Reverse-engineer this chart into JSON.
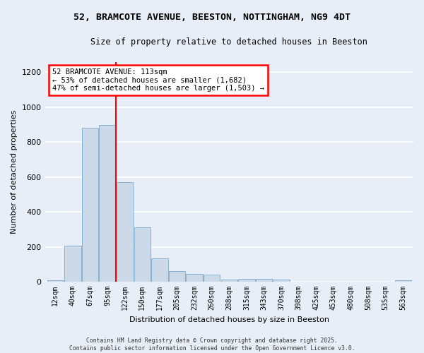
{
  "title": "52, BRAMCOTE AVENUE, BEESTON, NOTTINGHAM, NG9 4DT",
  "subtitle": "Size of property relative to detached houses in Beeston",
  "xlabel": "Distribution of detached houses by size in Beeston",
  "ylabel": "Number of detached properties",
  "bar_color": "#ccd9e8",
  "bar_edge_color": "#8aafd0",
  "background_color": "#e8eef8",
  "grid_color": "#ffffff",
  "fig_background": "#e8eef8",
  "categories": [
    "12sqm",
    "40sqm",
    "67sqm",
    "95sqm",
    "122sqm",
    "150sqm",
    "177sqm",
    "205sqm",
    "232sqm",
    "260sqm",
    "288sqm",
    "315sqm",
    "343sqm",
    "370sqm",
    "398sqm",
    "425sqm",
    "453sqm",
    "480sqm",
    "508sqm",
    "535sqm",
    "563sqm"
  ],
  "values": [
    10,
    205,
    880,
    900,
    570,
    310,
    135,
    60,
    45,
    40,
    12,
    18,
    15,
    14,
    0,
    1,
    0,
    1,
    0,
    0,
    8
  ],
  "ylim": [
    0,
    1260
  ],
  "yticks": [
    0,
    200,
    400,
    600,
    800,
    1000,
    1200
  ],
  "red_line_x": 4.0,
  "annotation_title": "52 BRAMCOTE AVENUE: 113sqm",
  "annotation_line1": "← 53% of detached houses are smaller (1,682)",
  "annotation_line2": "47% of semi-detached houses are larger (1,503) →",
  "footer_line1": "Contains HM Land Registry data © Crown copyright and database right 2025.",
  "footer_line2": "Contains public sector information licensed under the Open Government Licence v3.0."
}
